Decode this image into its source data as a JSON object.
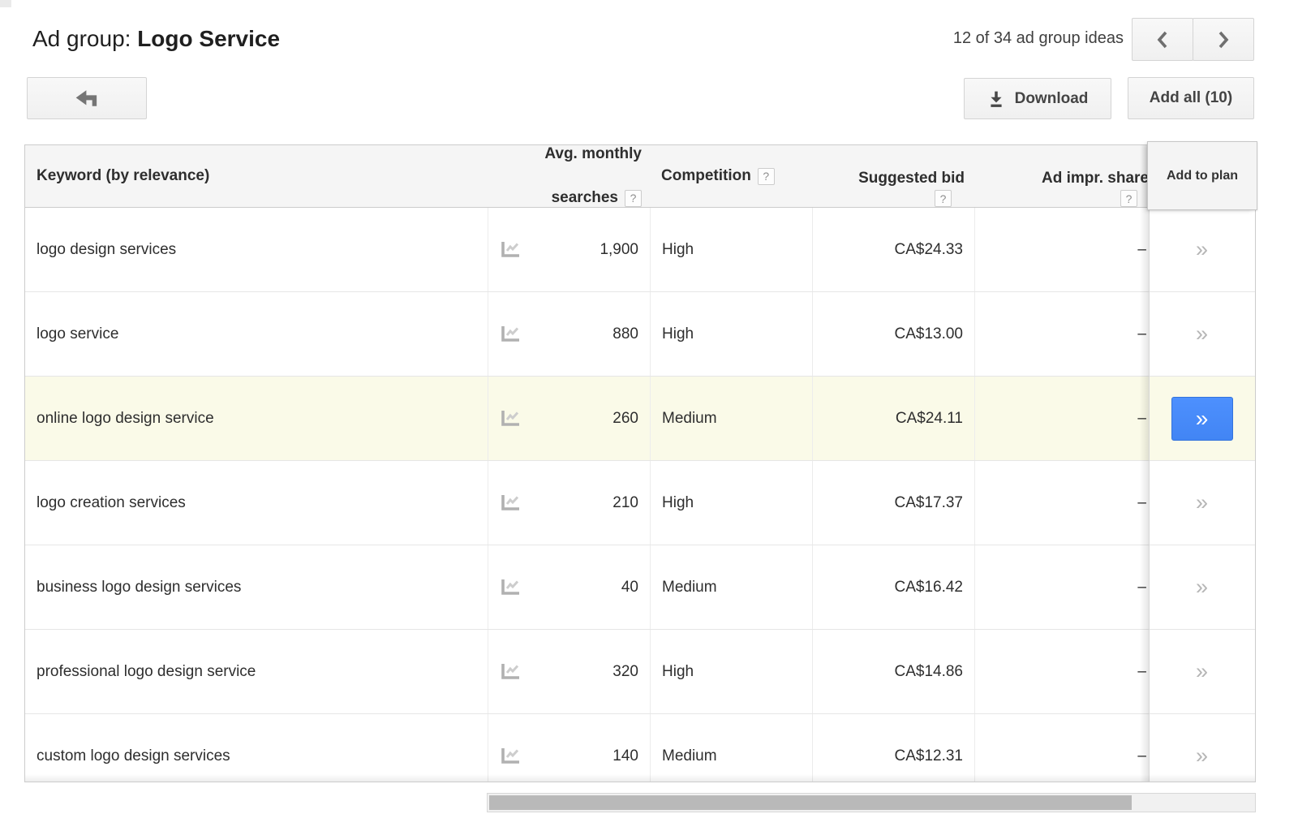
{
  "page": {
    "title_prefix": "Ad group: ",
    "title_name": "Logo Service",
    "pager_text": "12 of 34 ad group ideas"
  },
  "toolbar": {
    "download_label": "Download",
    "add_all_label": "Add all (10)"
  },
  "colors": {
    "accent_blue": "#4285f4",
    "row_highlight": "#fafae8",
    "header_bg": "#f5f5f5"
  },
  "table": {
    "header": {
      "keyword": "Keyword (by relevance)",
      "searches_line1": "Avg. monthly",
      "searches_line2": "searches",
      "competition": "Competition",
      "bid": "Suggested bid",
      "impr_share": "Ad impr. share",
      "add_to_plan": "Add to plan",
      "help_glyph": "?"
    },
    "add_glyph": "»",
    "rows": [
      {
        "keyword": "logo design services",
        "searches": "1,900",
        "competition": "High",
        "bid": "CA$24.33",
        "impr_share": "–",
        "highlighted": false
      },
      {
        "keyword": "logo service",
        "searches": "880",
        "competition": "High",
        "bid": "CA$13.00",
        "impr_share": "–",
        "highlighted": false
      },
      {
        "keyword": "online logo design service",
        "searches": "260",
        "competition": "Medium",
        "bid": "CA$24.11",
        "impr_share": "–",
        "highlighted": true
      },
      {
        "keyword": "logo creation services",
        "searches": "210",
        "competition": "High",
        "bid": "CA$17.37",
        "impr_share": "–",
        "highlighted": false
      },
      {
        "keyword": "business logo design services",
        "searches": "40",
        "competition": "Medium",
        "bid": "CA$16.42",
        "impr_share": "–",
        "highlighted": false
      },
      {
        "keyword": "professional logo design service",
        "searches": "320",
        "competition": "High",
        "bid": "CA$14.86",
        "impr_share": "–",
        "highlighted": false
      },
      {
        "keyword": "custom logo design services",
        "searches": "140",
        "competition": "Medium",
        "bid": "CA$12.31",
        "impr_share": "–",
        "highlighted": false
      }
    ]
  }
}
